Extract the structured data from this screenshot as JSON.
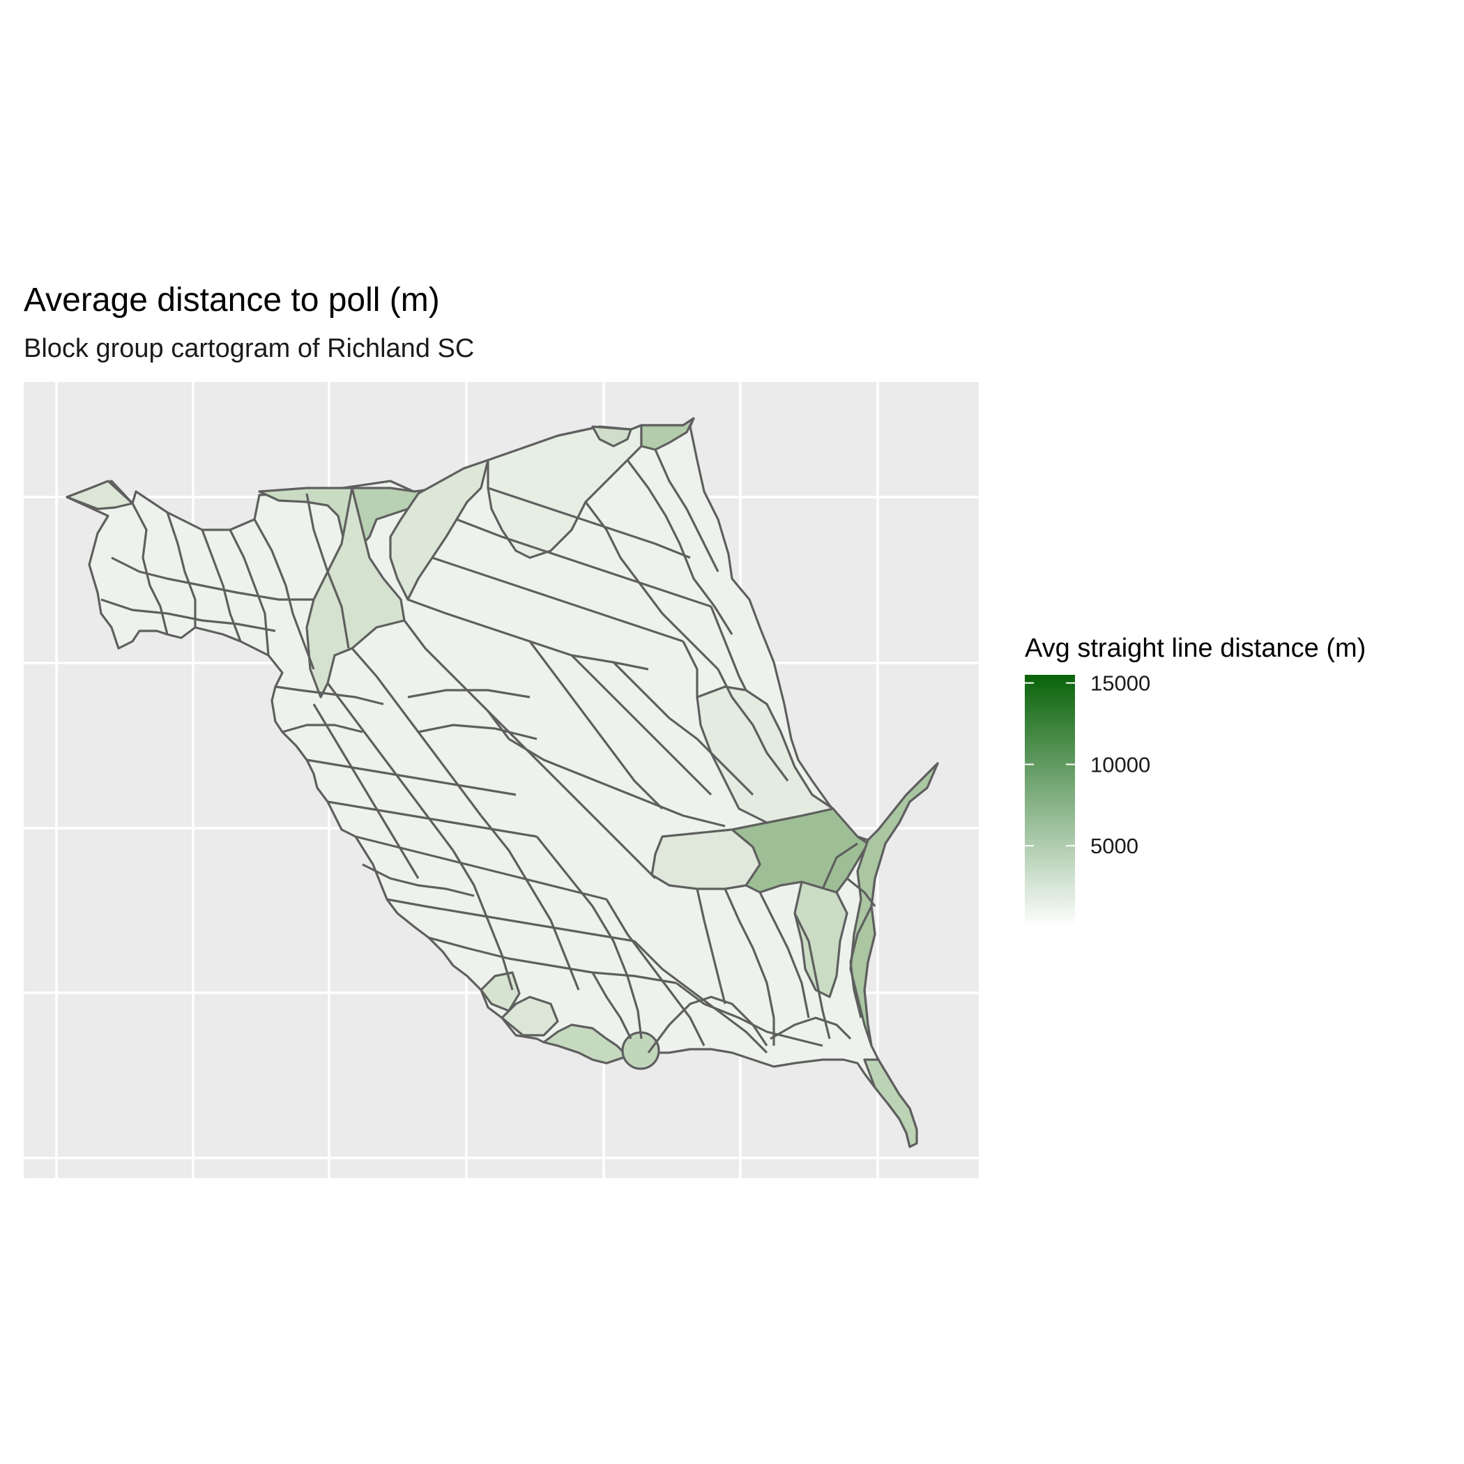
{
  "title": "Average distance to poll (m)",
  "subtitle": "Block group cartogram of Richland SC",
  "legend": {
    "title": "Avg straight line distance (m)",
    "placement": "right",
    "breaks": [
      {
        "value": 5000,
        "label": "5000"
      },
      {
        "value": 10000,
        "label": "10000"
      },
      {
        "value": 15000,
        "label": "15000"
      }
    ],
    "range": [
      0,
      15500
    ]
  },
  "colors": {
    "panel_bg": "#ebebeb",
    "grid": "#ffffff",
    "outline": "#5f5f5f",
    "scale_low": "#ffffff",
    "scale_high": "#0a630a"
  },
  "chart_data": {
    "type": "choropleth",
    "title": "Average distance to poll (m)",
    "subtitle": "Block group cartogram of Richland SC",
    "fill_variable": "Avg straight line distance (m)",
    "grid": true,
    "axis_labels_shown": false
  }
}
